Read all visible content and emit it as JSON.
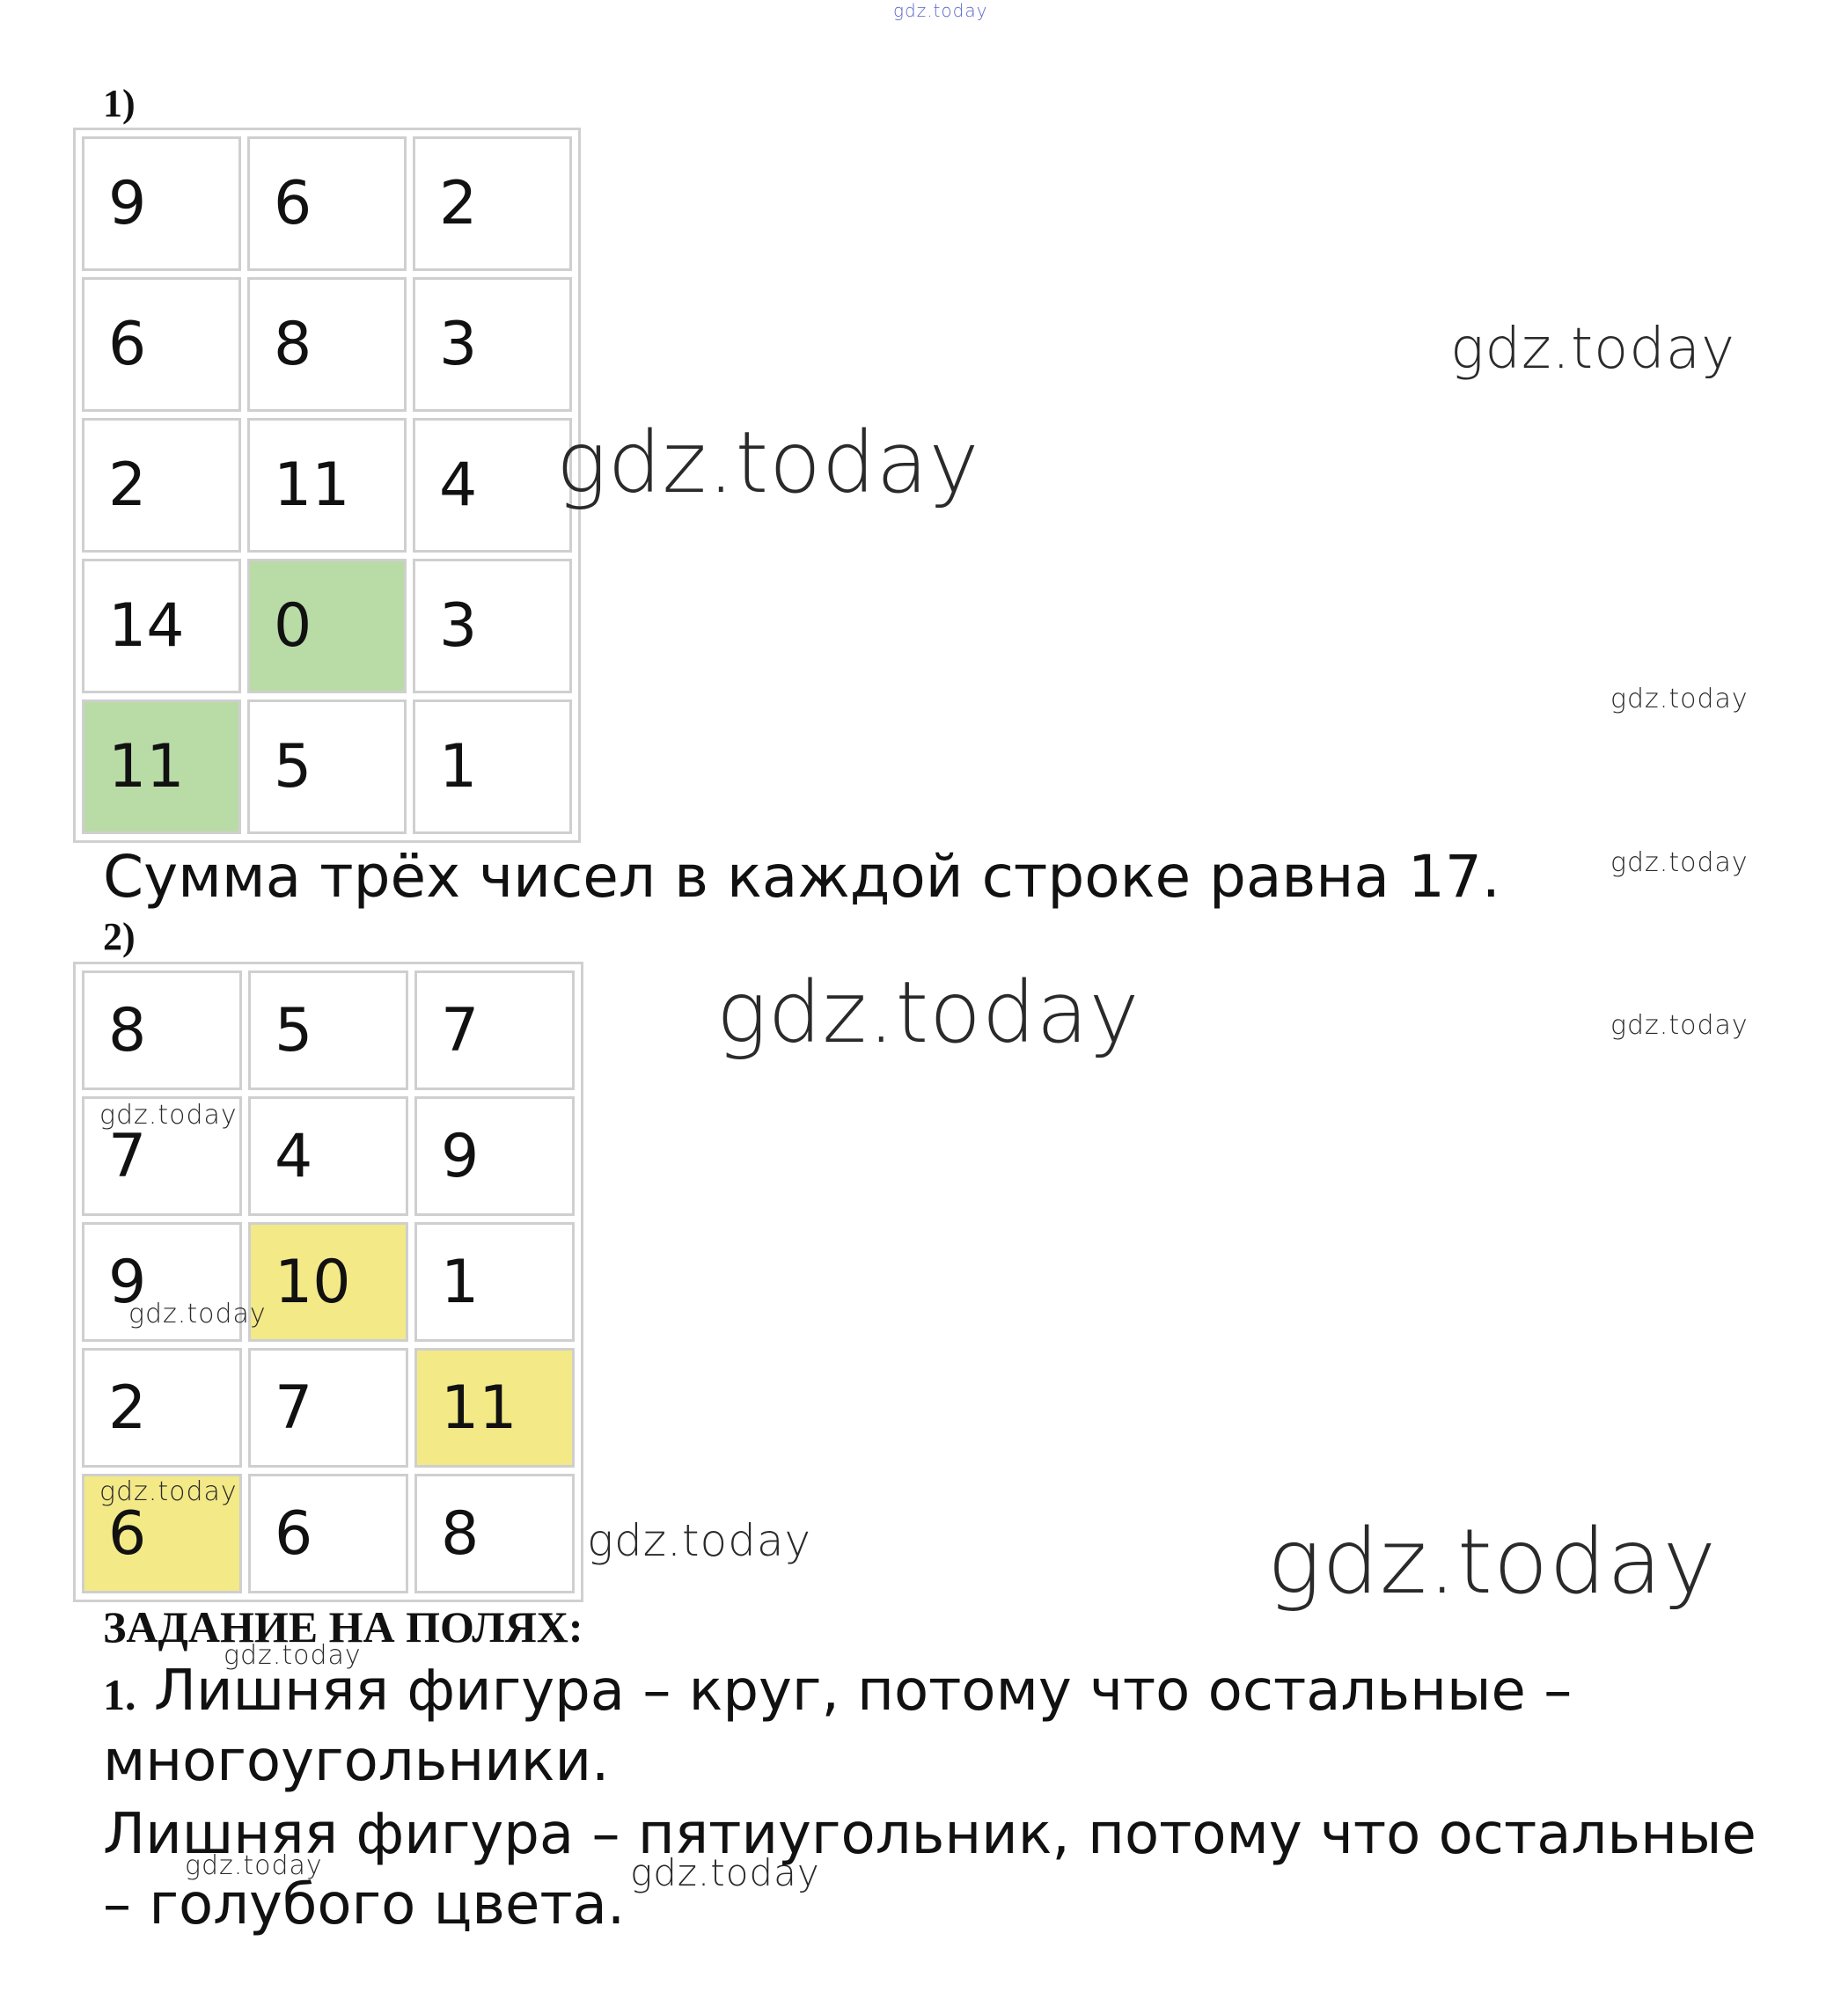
{
  "task1": {
    "label": "1)",
    "rows": [
      [
        9,
        6,
        2
      ],
      [
        6,
        8,
        3
      ],
      [
        2,
        11,
        4
      ],
      [
        14,
        0,
        3
      ],
      [
        11,
        5,
        1
      ]
    ],
    "highlight": [
      [
        3,
        1
      ],
      [
        4,
        0
      ]
    ],
    "highlight_color": "#b9dba6",
    "caption": "Сумма трёх чисел в каждой строке равна 17."
  },
  "task2": {
    "label": "2)",
    "rows": [
      [
        8,
        5,
        7
      ],
      [
        7,
        4,
        9
      ],
      [
        9,
        10,
        1
      ],
      [
        2,
        7,
        11
      ],
      [
        6,
        6,
        8
      ]
    ],
    "highlight": [
      [
        2,
        1
      ],
      [
        3,
        2
      ],
      [
        4,
        0
      ]
    ],
    "highlight_color": "#f3e987"
  },
  "margin_task": {
    "heading": "ЗАДАНИЕ НА ПОЛЯХ:",
    "number": "1.",
    "lines": [
      "Лишняя фигура – круг, потому что остальные –",
      "многоугольники.",
      "Лишняя фигура – пятиугольник, потому что остальные",
      "– голубого цвета."
    ]
  },
  "watermarks": [
    "gdz.today",
    "gdz.today",
    "gdz.today",
    "gdz.today",
    "gdz.today",
    "gdz.today",
    "gdz.today",
    "gdz.today",
    "gdz.today",
    "gdz.today",
    "gdz.today",
    "gdz.today",
    "gdz.today",
    "gdz.today",
    "gdz.today"
  ]
}
